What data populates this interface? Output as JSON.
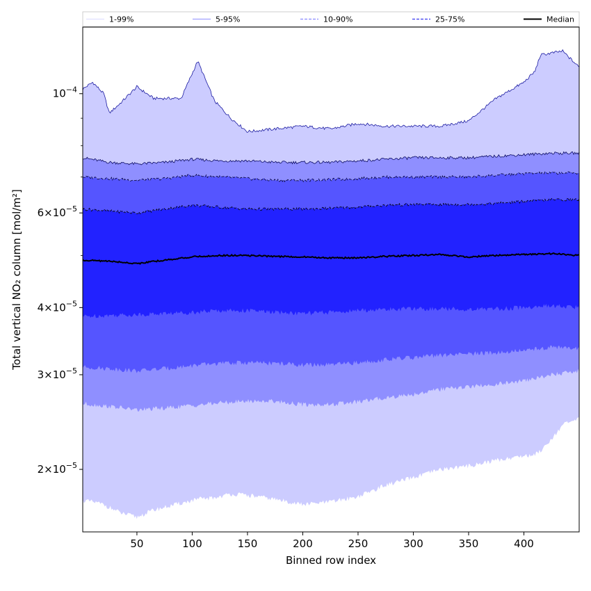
{
  "chart_data": {
    "type": "area",
    "xlabel": "Binned row index",
    "ylabel": "Total vertical NO₂ column [mol/m²]",
    "x_scale": "linear",
    "y_scale": "log",
    "xlim": [
      1,
      450
    ],
    "ylim": [
      1.53e-05,
      0.000133
    ],
    "x_ticks": [
      {
        "value": 50,
        "label": "50"
      },
      {
        "value": 100,
        "label": "100"
      },
      {
        "value": 150,
        "label": "150"
      },
      {
        "value": 200,
        "label": "200"
      },
      {
        "value": 250,
        "label": "250"
      },
      {
        "value": 300,
        "label": "300"
      },
      {
        "value": 350,
        "label": "350"
      },
      {
        "value": 400,
        "label": "400"
      }
    ],
    "y_major_ticks": [
      {
        "value": 2e-05,
        "mantissa": "2",
        "exponent": "−5"
      },
      {
        "value": 3e-05,
        "mantissa": "3",
        "exponent": "−5"
      },
      {
        "value": 4e-05,
        "mantissa": "4",
        "exponent": "−5"
      },
      {
        "value": 6e-05,
        "mantissa": "6",
        "exponent": "−5"
      },
      {
        "value": 0.0001,
        "mantissa": "",
        "exponent": "−4"
      }
    ],
    "y_minor_ticks": [
      5e-05,
      7e-05,
      8e-05,
      9e-05
    ],
    "grid": false,
    "legend_position": "top",
    "legend": [
      {
        "label": "1-99%",
        "color": "#e0e0ff",
        "dash": "solid"
      },
      {
        "label": "5-95%",
        "color": "#a0a0ff",
        "dash": "solid"
      },
      {
        "label": "10-90%",
        "color": "#8888ff",
        "dash": "dashed"
      },
      {
        "label": "25-75%",
        "color": "#3a3af0",
        "dash": "dashed"
      },
      {
        "label": "Median",
        "color": "#000000",
        "dash": "solid"
      }
    ],
    "bands": [
      {
        "name": "1-99%",
        "color": "#ccccff",
        "x": [
          1,
          10,
          20,
          25,
          35,
          50,
          65,
          90,
          105,
          120,
          135,
          150,
          175,
          200,
          225,
          250,
          275,
          300,
          325,
          350,
          375,
          400,
          410,
          415,
          425,
          435,
          450
        ],
        "upper": [
          0.000102,
          0.000105,
          0.0001,
          9.2e-05,
          9.6e-05,
          0.000103,
          9.8e-05,
          9.8e-05,
          0.000115,
          9.7e-05,
          9e-05,
          8.5e-05,
          8.6e-05,
          8.7e-05,
          8.6e-05,
          8.8e-05,
          8.7e-05,
          8.7e-05,
          8.7e-05,
          8.9e-05,
          9.8e-05,
          0.000105,
          0.00011,
          0.000118,
          0.000119,
          0.00012,
          0.000112
        ],
        "lower": [
          1.75e-05,
          1.74e-05,
          1.72e-05,
          1.7e-05,
          1.66e-05,
          1.63e-05,
          1.68e-05,
          1.73e-05,
          1.76e-05,
          1.77e-05,
          1.8e-05,
          1.79e-05,
          1.76e-05,
          1.72e-05,
          1.74e-05,
          1.78e-05,
          1.87e-05,
          1.93e-05,
          2e-05,
          2.03e-05,
          2.08e-05,
          2.12e-05,
          2.13e-05,
          2.17e-05,
          2.28e-05,
          2.42e-05,
          2.48e-05
        ]
      },
      {
        "name": "5-95%",
        "color": "#8f8fff",
        "x": [
          1,
          25,
          50,
          75,
          100,
          125,
          150,
          175,
          200,
          225,
          250,
          275,
          300,
          325,
          350,
          375,
          400,
          425,
          450
        ],
        "upper": [
          7.6e-05,
          7.45e-05,
          7.4e-05,
          7.45e-05,
          7.55e-05,
          7.5e-05,
          7.5e-05,
          7.45e-05,
          7.45e-05,
          7.45e-05,
          7.5e-05,
          7.55e-05,
          7.6e-05,
          7.6e-05,
          7.6e-05,
          7.65e-05,
          7.7e-05,
          7.75e-05,
          7.75e-05
        ],
        "lower": [
          2.65e-05,
          2.62e-05,
          2.58e-05,
          2.6e-05,
          2.63e-05,
          2.66e-05,
          2.68e-05,
          2.68e-05,
          2.64e-05,
          2.64e-05,
          2.67e-05,
          2.72e-05,
          2.76e-05,
          2.82e-05,
          2.85e-05,
          2.88e-05,
          2.92e-05,
          3e-05,
          3.05e-05
        ]
      },
      {
        "name": "10-90%",
        "color": "#5555ff",
        "x": [
          1,
          25,
          50,
          75,
          100,
          125,
          150,
          175,
          200,
          225,
          250,
          275,
          300,
          325,
          350,
          375,
          400,
          425,
          450
        ],
        "upper": [
          7e-05,
          6.95e-05,
          6.9e-05,
          6.95e-05,
          7.05e-05,
          7e-05,
          6.95e-05,
          6.9e-05,
          6.9e-05,
          6.92e-05,
          6.95e-05,
          7e-05,
          7e-05,
          7e-05,
          7e-05,
          7.05e-05,
          7.1e-05,
          7.12e-05,
          7.12e-05
        ],
        "lower": [
          3.1e-05,
          3.08e-05,
          3.05e-05,
          3.08e-05,
          3.12e-05,
          3.15e-05,
          3.16e-05,
          3.15e-05,
          3.13e-05,
          3.13e-05,
          3.16e-05,
          3.2e-05,
          3.23e-05,
          3.26e-05,
          3.28e-05,
          3.3e-05,
          3.33e-05,
          3.38e-05,
          3.35e-05
        ]
      },
      {
        "name": "25-75%",
        "color": "#2222ff",
        "x": [
          1,
          25,
          50,
          75,
          100,
          125,
          150,
          175,
          200,
          225,
          250,
          275,
          300,
          325,
          350,
          375,
          400,
          425,
          450
        ],
        "upper": [
          6.1e-05,
          6.05e-05,
          6e-05,
          6.1e-05,
          6.2e-05,
          6.15e-05,
          6.1e-05,
          6.1e-05,
          6.1e-05,
          6.12e-05,
          6.15e-05,
          6.2e-05,
          6.22e-05,
          6.22e-05,
          6.22e-05,
          6.25e-05,
          6.3e-05,
          6.35e-05,
          6.35e-05
        ],
        "lower": [
          3.85e-05,
          3.87e-05,
          3.88e-05,
          3.9e-05,
          3.92e-05,
          3.95e-05,
          3.95e-05,
          3.92e-05,
          3.9e-05,
          3.92e-05,
          3.95e-05,
          3.97e-05,
          3.98e-05,
          3.98e-05,
          3.97e-05,
          3.98e-05,
          4e-05,
          4.03e-05,
          4e-05
        ]
      }
    ],
    "median": {
      "name": "Median",
      "color": "#000000",
      "x": [
        1,
        25,
        50,
        75,
        100,
        125,
        150,
        175,
        200,
        225,
        250,
        275,
        300,
        325,
        350,
        375,
        400,
        425,
        450
      ],
      "values": [
        4.9e-05,
        4.88e-05,
        4.83e-05,
        4.9e-05,
        4.97e-05,
        5e-05,
        5e-05,
        4.98e-05,
        4.97e-05,
        4.95e-05,
        4.95e-05,
        4.98e-05,
        5e-05,
        5.02e-05,
        4.97e-05,
        5e-05,
        5.02e-05,
        5.04e-05,
        5e-05
      ]
    }
  }
}
